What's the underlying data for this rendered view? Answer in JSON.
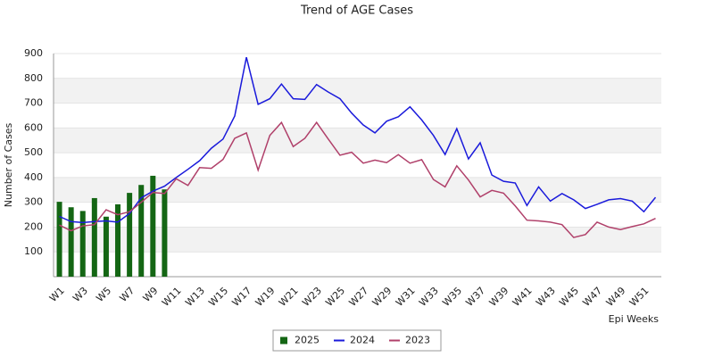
{
  "chart_data": {
    "type": "bar",
    "title": "Trend of AGE Cases",
    "x_label": "Epi Weeks",
    "y_label": "Number of Cases",
    "categories": [
      "W1",
      null,
      "W3",
      null,
      "W5",
      null,
      "W7",
      null,
      "W9",
      null,
      "W11",
      null,
      "W13",
      null,
      "W15",
      null,
      "W17",
      null,
      "W19",
      null,
      "W21",
      null,
      "W23",
      null,
      "W25",
      null,
      "W27",
      null,
      "W29",
      null,
      "W31",
      null,
      "W33",
      null,
      "W35",
      null,
      "W37",
      null,
      "W39",
      null,
      "W41",
      null,
      "W43",
      null,
      "W45",
      null,
      "W47",
      null,
      "W49",
      null,
      "W51",
      null
    ],
    "series": [
      {
        "name": "2025",
        "type": "bar",
        "color": "#146614",
        "values": [
          302,
          280,
          265,
          317,
          242,
          292,
          338,
          370,
          407,
          352,
          null,
          null,
          null,
          null,
          null,
          null,
          null,
          null,
          null,
          null,
          null,
          null,
          null,
          null,
          null,
          null,
          null,
          null,
          null,
          null,
          null,
          null,
          null,
          null,
          null,
          null,
          null,
          null,
          null,
          null,
          null,
          null,
          null,
          null,
          null,
          null,
          null,
          null,
          null,
          null,
          null,
          null
        ]
      },
      {
        "name": "2024",
        "type": "line",
        "color": "#1a1adb",
        "values": [
          243,
          222,
          218,
          222,
          225,
          220,
          255,
          318,
          345,
          365,
          400,
          433,
          468,
          518,
          555,
          648,
          885,
          695,
          718,
          777,
          718,
          715,
          775,
          745,
          718,
          660,
          612,
          580,
          627,
          645,
          685,
          632,
          570,
          493,
          597,
          475,
          540,
          410,
          385,
          378,
          287,
          362,
          305,
          335,
          310,
          275,
          292,
          310,
          315,
          305,
          262,
          320
        ]
      },
      {
        "name": "2023",
        "type": "line",
        "color": "#b0406a",
        "values": [
          208,
          185,
          205,
          210,
          270,
          250,
          262,
          300,
          340,
          335,
          395,
          368,
          440,
          437,
          473,
          558,
          580,
          430,
          570,
          622,
          525,
          558,
          622,
          555,
          490,
          502,
          458,
          470,
          460,
          492,
          458,
          472,
          392,
          362,
          447,
          390,
          322,
          348,
          337,
          285,
          228,
          225,
          220,
          210,
          158,
          170,
          220,
          200,
          190,
          202,
          213,
          235
        ]
      }
    ],
    "ylim": [
      0,
      900
    ],
    "yticks": [
      100,
      200,
      300,
      400,
      500,
      600,
      700,
      800,
      900
    ],
    "grid": true,
    "legend": "bottom"
  }
}
